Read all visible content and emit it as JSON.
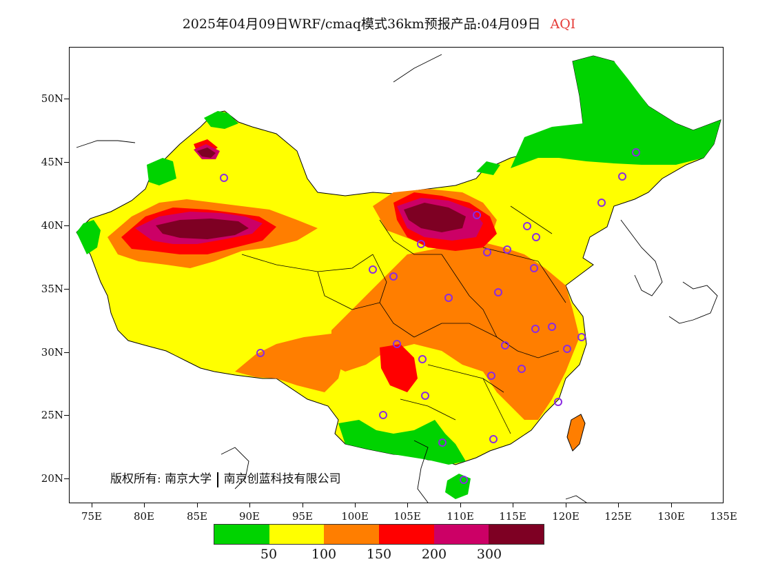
{
  "title": {
    "main": "2025年04月09日WRF/cmaq模式36km预报产品:04月09日",
    "variable": "AQI",
    "variable_color": "#e53935"
  },
  "axes": {
    "lat_labels": [
      "50N",
      "45N",
      "40N",
      "35N",
      "30N",
      "25N",
      "20N"
    ],
    "lon_labels": [
      "75E",
      "80E",
      "85E",
      "90E",
      "95E",
      "100E",
      "105E",
      "110E",
      "115E",
      "120E",
      "125E",
      "130E",
      "135E"
    ]
  },
  "copyright": {
    "prefix": "版权所有:",
    "org1": "南京大学",
    "org2": "南京创蓝科技有限公司"
  },
  "legend": {
    "colors": [
      "#00d300",
      "#ffff00",
      "#ff7e00",
      "#ff0000",
      "#cc0066",
      "#7e0023"
    ],
    "labels": [
      "50",
      "100",
      "150",
      "200",
      "300"
    ]
  },
  "colors": {
    "good": "#00d300",
    "moderate": "#ffff00",
    "sensitive": "#ff7e00",
    "unhealthy": "#ff0000",
    "very_unhealthy": "#cc0066",
    "hazardous": "#7e0023",
    "station_marker": "#8a2be2"
  }
}
